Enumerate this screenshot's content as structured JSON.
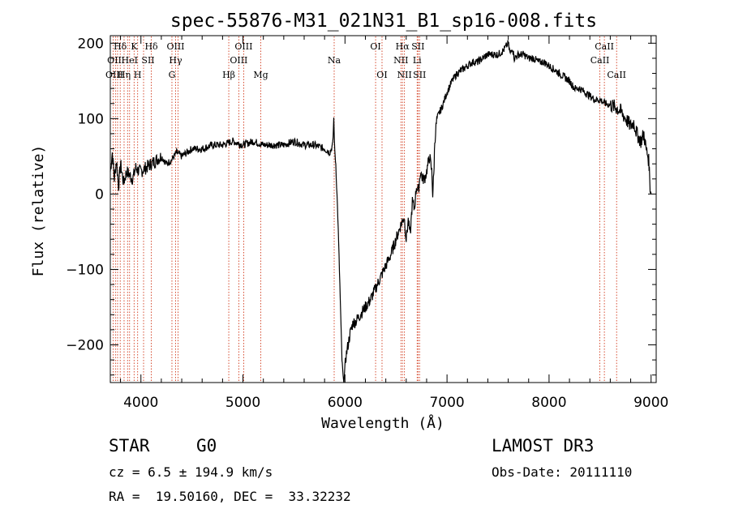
{
  "chart_data": {
    "type": "line",
    "title": "spec-55876-M31_021N31_B1_sp16-008.fits",
    "xlabel": "Wavelength (Å)",
    "ylabel": "Flux (relative)",
    "xlim": [
      3700,
      9050
    ],
    "ylim": [
      -250,
      210
    ],
    "xticks": [
      4000,
      5000,
      6000,
      7000,
      8000,
      9000
    ],
    "xtick_labels": [
      "4000",
      "5000",
      "6000",
      "7000",
      "8000",
      "9000"
    ],
    "yticks": [
      -200,
      -100,
      0,
      100,
      200
    ],
    "ytick_labels": [
      "−200",
      "−100",
      "0",
      "100",
      "200"
    ],
    "series": [
      {
        "name": "flux",
        "x": [
          3700,
          3720,
          3740,
          3760,
          3780,
          3800,
          3830,
          3860,
          3890,
          3920,
          3950,
          3980,
          4000,
          4050,
          4100,
          4150,
          4200,
          4250,
          4300,
          4350,
          4400,
          4500,
          4600,
          4700,
          4800,
          4900,
          5000,
          5100,
          5200,
          5300,
          5400,
          5500,
          5600,
          5700,
          5800,
          5850,
          5880,
          5890,
          5895,
          5900,
          5910,
          5930,
          5950,
          5970,
          5985,
          6000,
          6010,
          6030,
          6050,
          6080,
          6100,
          6150,
          6200,
          6250,
          6300,
          6350,
          6400,
          6450,
          6500,
          6550,
          6580,
          6600,
          6620,
          6640,
          6660,
          6680,
          6700,
          6720,
          6740,
          6760,
          6780,
          6800,
          6830,
          6850,
          6860,
          6870,
          6880,
          6900,
          6950,
          7000,
          7050,
          7100,
          7150,
          7200,
          7250,
          7300,
          7350,
          7400,
          7450,
          7500,
          7550,
          7600,
          7620,
          7640,
          7660,
          7700,
          7750,
          7800,
          7850,
          7900,
          7950,
          8000,
          8050,
          8100,
          8150,
          8200,
          8250,
          8300,
          8350,
          8400,
          8450,
          8500,
          8550,
          8600,
          8650,
          8700,
          8750,
          8800,
          8830,
          8860,
          8900,
          8930,
          8950,
          8970,
          8980,
          8990,
          9000
        ],
        "y": [
          30,
          55,
          20,
          45,
          10,
          40,
          15,
          30,
          25,
          20,
          35,
          30,
          30,
          35,
          40,
          45,
          50,
          40,
          45,
          55,
          50,
          60,
          60,
          65,
          65,
          70,
          65,
          70,
          65,
          65,
          65,
          70,
          65,
          65,
          60,
          55,
          65,
          100,
          80,
          55,
          40,
          -30,
          -120,
          -220,
          -250,
          -230,
          -215,
          -200,
          -185,
          -170,
          -170,
          -160,
          -150,
          -140,
          -125,
          -110,
          -95,
          -80,
          -60,
          -40,
          -30,
          -60,
          -35,
          -55,
          -10,
          -20,
          10,
          5,
          30,
          20,
          20,
          30,
          50,
          30,
          0,
          25,
          70,
          100,
          115,
          135,
          150,
          160,
          165,
          170,
          175,
          175,
          180,
          185,
          185,
          185,
          190,
          200,
          185,
          195,
          180,
          185,
          185,
          180,
          180,
          175,
          175,
          170,
          165,
          160,
          155,
          150,
          140,
          140,
          135,
          130,
          125,
          125,
          120,
          118,
          115,
          110,
          100,
          90,
          95,
          80,
          70,
          80,
          60,
          50,
          40,
          10,
          0
        ]
      }
    ],
    "annotation_wavelengths": [
      3727,
      3750,
      3771,
      3797,
      3835,
      3869,
      3889,
      3933,
      3968,
      4026,
      4102,
      4304,
      4340,
      4363,
      4861,
      4959,
      5007,
      5175,
      5894,
      6300,
      6363,
      6548,
      6563,
      6583,
      6707,
      6716,
      6731,
      8498,
      8542,
      8662
    ],
    "line_labels": [
      {
        "text": "Hδ",
        "wl": 3797,
        "row": 1
      },
      {
        "text": "K",
        "wl": 3934,
        "row": 1
      },
      {
        "text": "Hδ",
        "wl": 4102,
        "row": 1
      },
      {
        "text": "OIII",
        "wl": 4340,
        "row": 1
      },
      {
        "text": "OIII",
        "wl": 5007,
        "row": 1
      },
      {
        "text": "OI",
        "wl": 6300,
        "row": 1
      },
      {
        "text": "Hα",
        "wl": 6563,
        "row": 1
      },
      {
        "text": "SII",
        "wl": 6716,
        "row": 1
      },
      {
        "text": "CaII",
        "wl": 8542,
        "row": 1
      },
      {
        "text": "OII",
        "wl": 3740,
        "row": 2
      },
      {
        "text": "HeI",
        "wl": 3889,
        "row": 2
      },
      {
        "text": "SII",
        "wl": 4070,
        "row": 2
      },
      {
        "text": "Hγ",
        "wl": 4340,
        "row": 2
      },
      {
        "text": "OIII",
        "wl": 4959,
        "row": 2
      },
      {
        "text": "Na",
        "wl": 5894,
        "row": 2
      },
      {
        "text": "NII",
        "wl": 6548,
        "row": 2
      },
      {
        "text": "Li",
        "wl": 6707,
        "row": 2
      },
      {
        "text": "CaII",
        "wl": 8498,
        "row": 2
      },
      {
        "text": "OIII",
        "wl": 3740,
        "row": 3
      },
      {
        "text": "Hη",
        "wl": 3835,
        "row": 3
      },
      {
        "text": "H",
        "wl": 3968,
        "row": 3
      },
      {
        "text": "G",
        "wl": 4304,
        "row": 3
      },
      {
        "text": "Hβ",
        "wl": 4861,
        "row": 3
      },
      {
        "text": "Mg",
        "wl": 5175,
        "row": 3
      },
      {
        "text": "OI",
        "wl": 6363,
        "row": 3
      },
      {
        "text": "NII",
        "wl": 6583,
        "row": 3
      },
      {
        "text": "SII",
        "wl": 6731,
        "row": 3
      },
      {
        "text": "CaII",
        "wl": 8662,
        "row": 3
      }
    ],
    "colors": {
      "spectrum": "#000000",
      "annotation_line": "#cc2200"
    }
  },
  "info": {
    "class": "STAR",
    "subclass": "G0",
    "survey": "LAMOST DR3",
    "velocity": "cz = 6.5 ± 194.9 km/s",
    "obs_date": "Obs-Date: 20111110",
    "coords": "RA =  19.50160, DEC =  33.32232"
  }
}
